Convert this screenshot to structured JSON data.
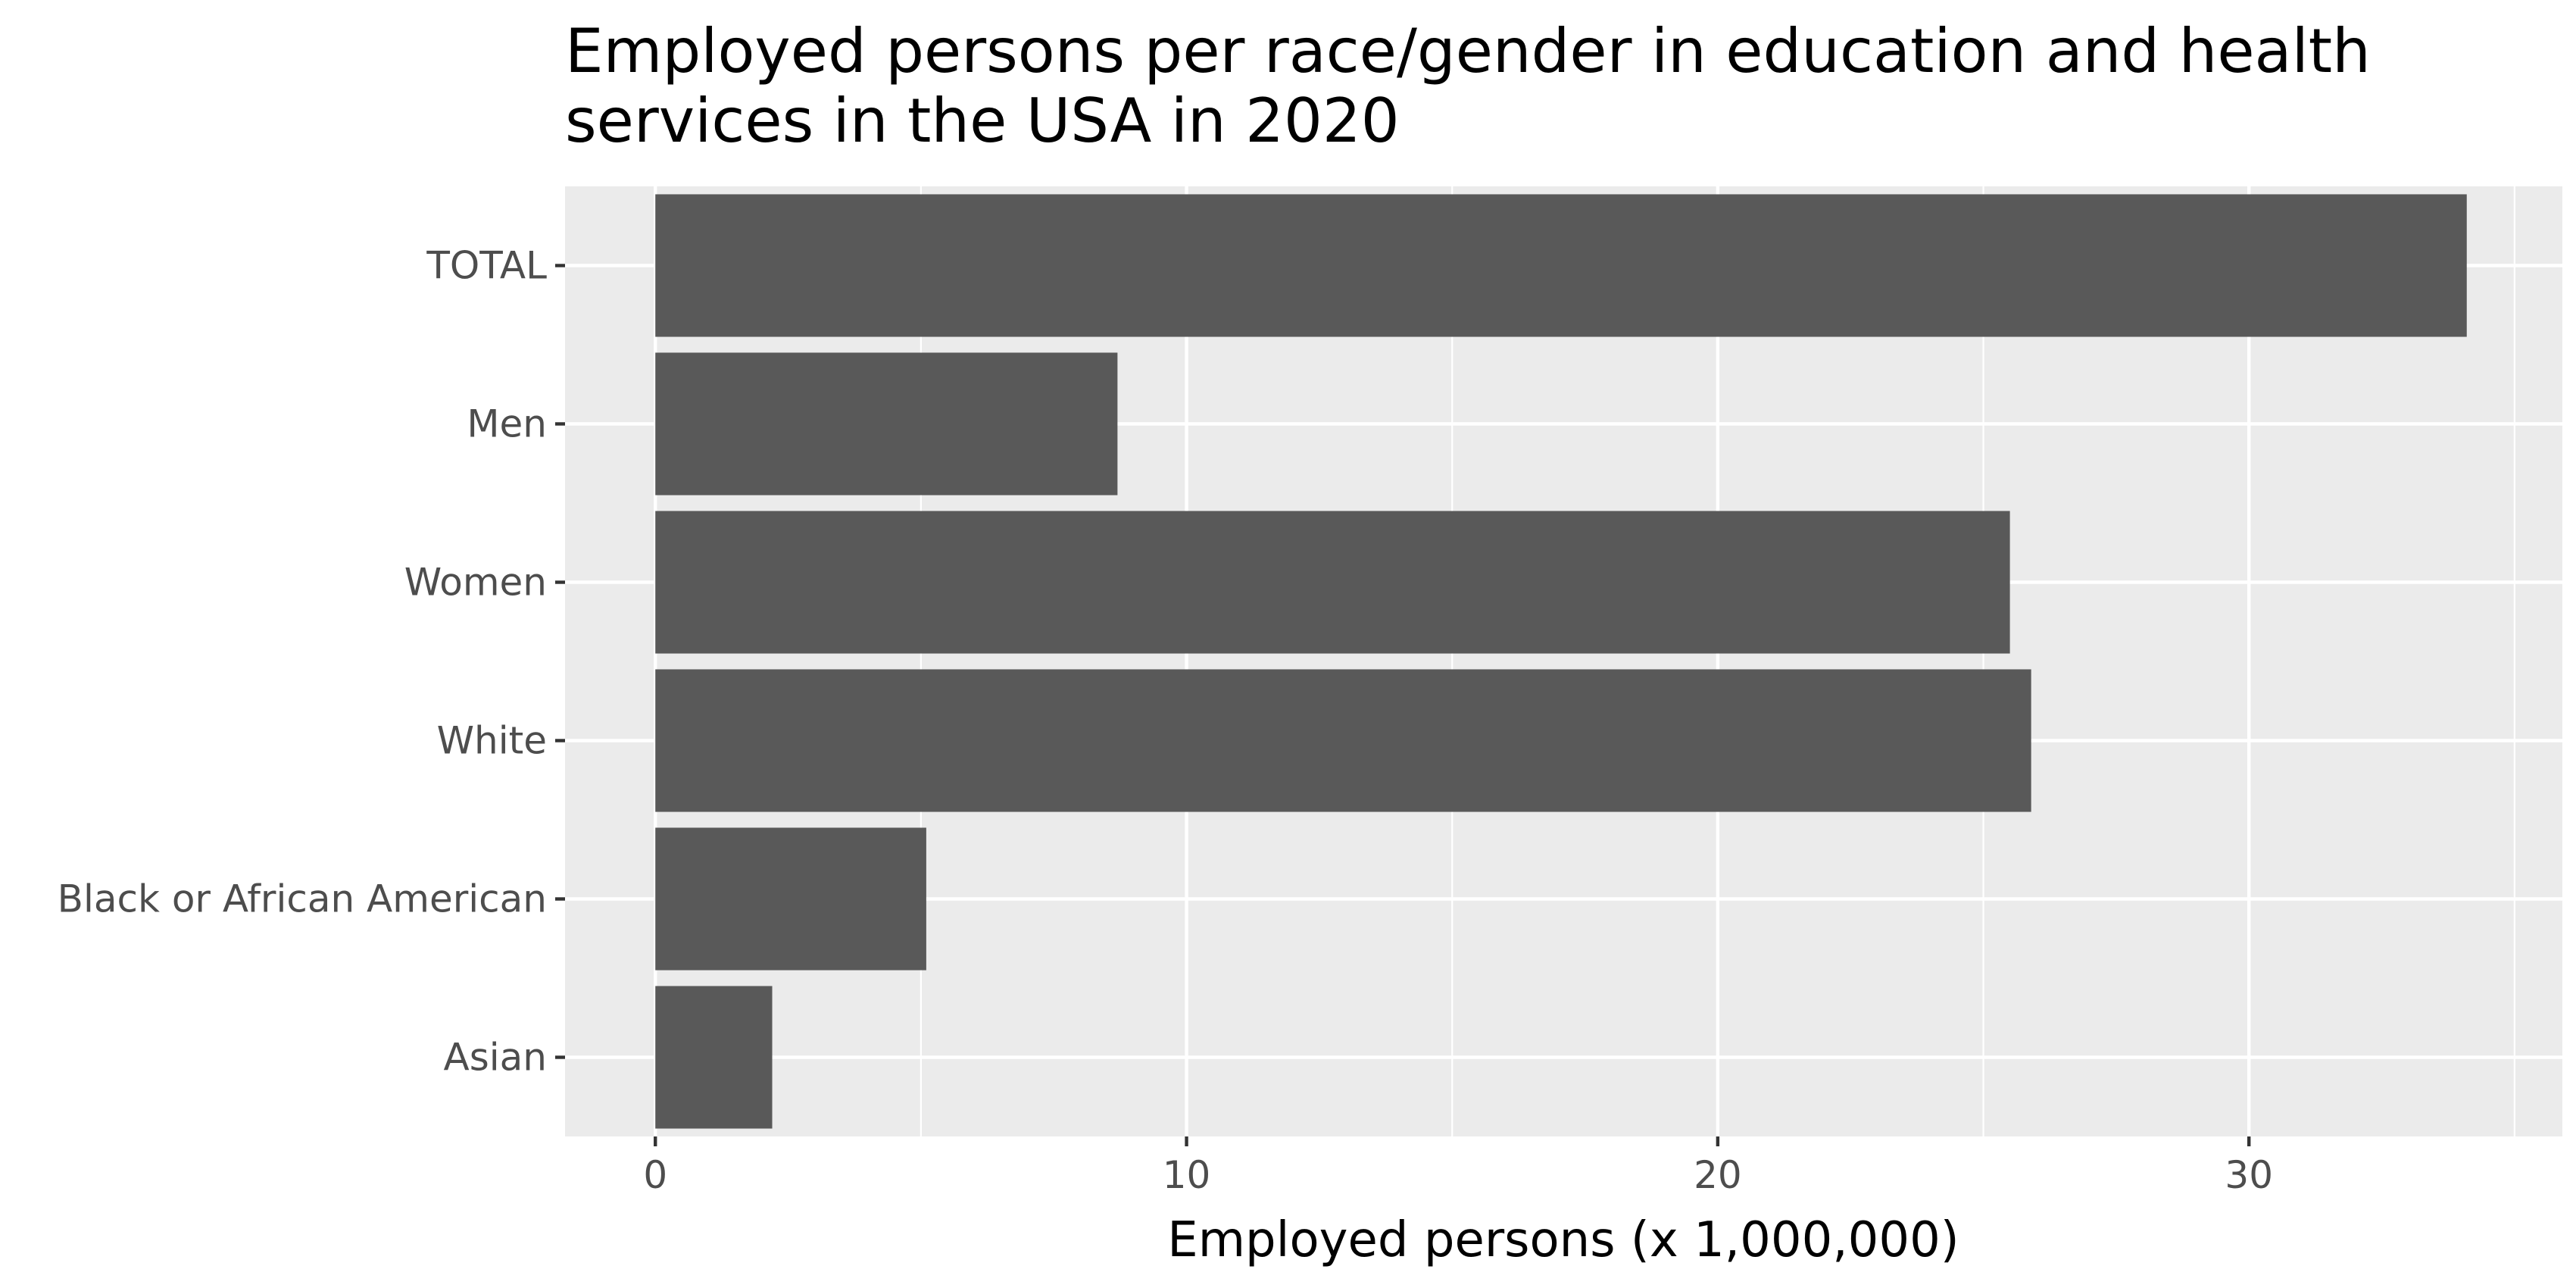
{
  "chart_data": {
    "type": "bar",
    "orientation": "horizontal",
    "title": "Employed persons per race/gender in education and health services in the USA in 2020",
    "xlabel": "Employed persons (x 1,000,000)",
    "ylabel": "",
    "categories": [
      "TOTAL",
      "Men",
      "Women",
      "White",
      "Black or African American",
      "Asian"
    ],
    "values": [
      34.1,
      8.7,
      25.5,
      25.9,
      5.1,
      2.2
    ],
    "xlim": [
      -1.7,
      35.9
    ],
    "xticks": [
      0,
      10,
      20,
      30
    ],
    "xtick_labels": [
      "0",
      "10",
      "20",
      "30"
    ],
    "grid": true,
    "colors": {
      "bar": "#595959",
      "panel": "#ebebeb",
      "grid": "#ffffff",
      "tick_text": "#4d4d4d"
    }
  }
}
